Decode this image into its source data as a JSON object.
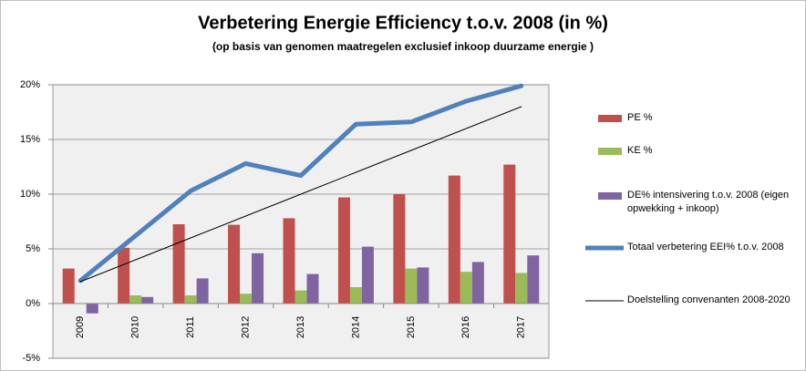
{
  "chart_data": {
    "type": "bar",
    "title": "Verbetering Energie Efficiency t.o.v. 2008 (in %)",
    "subtitle": "(op basis van genomen maatregelen exclusief inkoop duurzame energie )",
    "categories": [
      "2009",
      "2010",
      "2011",
      "2012",
      "2013",
      "2014",
      "2015",
      "2016",
      "2017"
    ],
    "series": [
      {
        "name": "PE %",
        "color": "#c0504d",
        "values": [
          3.2,
          5.1,
          7.25,
          7.2,
          7.8,
          9.7,
          10,
          11.7,
          12.7
        ]
      },
      {
        "name": "KE %",
        "color": "#9bbb59",
        "values": [
          0,
          0.75,
          0.75,
          0.9,
          1.2,
          1.5,
          3.2,
          2.9,
          2.8
        ]
      },
      {
        "name": "DE% intensivering t.o.v. 2008 (eigen opwekking + inkoop)",
        "color": "#8064a2",
        "values": [
          -0.9,
          0.6,
          2.3,
          4.6,
          2.7,
          5.2,
          3.3,
          3.8,
          4.4
        ]
      },
      {
        "name": "Totaal verbetering EEI% t.o.v. 2008",
        "color": "#4f81bd",
        "type": "line",
        "values": [
          2.1,
          6.2,
          10.3,
          12.8,
          11.7,
          16.4,
          16.6,
          18.5,
          19.9
        ]
      },
      {
        "name": "Doelstelling convenanten 2008-2020",
        "color": "#000000",
        "type": "line",
        "values": [
          2,
          4,
          6,
          8,
          10,
          12,
          14,
          16,
          18
        ]
      }
    ],
    "ylim": [
      -5,
      20
    ],
    "yticks": [
      {
        "value": -5,
        "label": "-5%"
      },
      {
        "value": 0,
        "label": "0%"
      },
      {
        "value": 5,
        "label": "5%"
      },
      {
        "value": 10,
        "label": "10%"
      },
      {
        "value": 15,
        "label": "15%"
      },
      {
        "value": 20,
        "label": "20%"
      }
    ],
    "grid": true
  }
}
